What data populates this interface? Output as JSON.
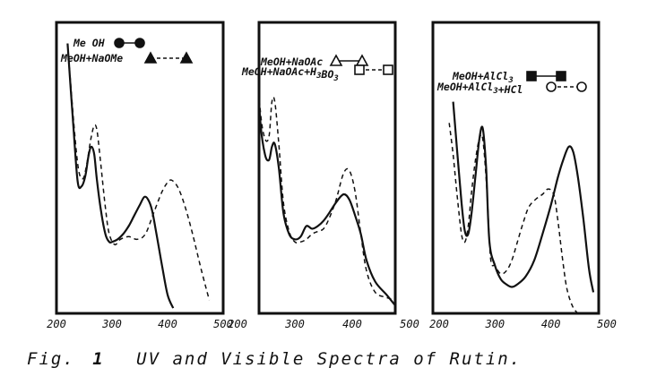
{
  "caption": {
    "fig": "Fig.",
    "number": "1",
    "text": "UV and Visible Spectra of Rutin."
  },
  "colors": {
    "ink": "#111111",
    "background": "#ffffff"
  },
  "chart_data": [
    {
      "type": "line",
      "title": "",
      "xlabel": "",
      "ylabel": "",
      "xlim": [
        200,
        500
      ],
      "ylim": [
        0,
        1.1
      ],
      "xticks": [
        "200",
        "300",
        "400",
        "500"
      ],
      "grid": false,
      "legend_position": "top",
      "series": [
        {
          "name": "Me OH",
          "marker": "filled-circle",
          "linestyle": "solid",
          "x": [
            220,
            230,
            238,
            245,
            252,
            258,
            263,
            268,
            273,
            280,
            288,
            295,
            300,
            310,
            320,
            330,
            340,
            350,
            358,
            365,
            372,
            380,
            390,
            400,
            410
          ],
          "y": [
            1.02,
            0.72,
            0.5,
            0.48,
            0.52,
            0.6,
            0.63,
            0.6,
            0.5,
            0.39,
            0.3,
            0.27,
            0.27,
            0.28,
            0.3,
            0.33,
            0.37,
            0.41,
            0.44,
            0.43,
            0.39,
            0.3,
            0.18,
            0.07,
            0.02
          ]
        },
        {
          "name": "MeOH+NaOMe",
          "marker": "filled-triangle",
          "linestyle": "dashed",
          "x": [
            220,
            232,
            240,
            248,
            255,
            262,
            268,
            273,
            280,
            288,
            295,
            305,
            315,
            330,
            345,
            360,
            375,
            390,
            402,
            410,
            420,
            432,
            445,
            460,
            475
          ],
          "y": [
            1.02,
            0.7,
            0.54,
            0.51,
            0.57,
            0.66,
            0.71,
            0.69,
            0.56,
            0.4,
            0.3,
            0.26,
            0.28,
            0.29,
            0.28,
            0.3,
            0.38,
            0.46,
            0.5,
            0.5,
            0.47,
            0.4,
            0.3,
            0.17,
            0.05
          ]
        }
      ]
    },
    {
      "type": "line",
      "title": "",
      "xlabel": "",
      "ylabel": "",
      "xlim": [
        200,
        500
      ],
      "ylim": [
        0,
        1.1
      ],
      "xticks": [
        "200",
        "300",
        "400",
        "500"
      ],
      "grid": false,
      "legend_position": "top",
      "series": [
        {
          "name": "MeOH+NaOAc",
          "marker": "open-triangle",
          "linestyle": "solid",
          "x": [
            232,
            240,
            248,
            255,
            260,
            265,
            272,
            280,
            290,
            300,
            310,
            320,
            330,
            340,
            350,
            360,
            372,
            385,
            395,
            405,
            415,
            425,
            440,
            460,
            475
          ],
          "y": [
            1.02,
            0.72,
            0.6,
            0.58,
            0.63,
            0.64,
            0.55,
            0.38,
            0.3,
            0.28,
            0.29,
            0.33,
            0.32,
            0.33,
            0.35,
            0.38,
            0.42,
            0.45,
            0.43,
            0.37,
            0.3,
            0.2,
            0.12,
            0.07,
            0.03
          ]
        },
        {
          "name": "MeOH+NaOAc+H3BO3",
          "marker": "open-square",
          "linestyle": "dashed",
          "x": [
            232,
            240,
            248,
            255,
            260,
            265,
            272,
            280,
            290,
            300,
            310,
            320,
            330,
            340,
            350,
            360,
            372,
            385,
            395,
            405,
            415,
            425,
            440,
            460,
            475
          ],
          "y": [
            1.02,
            0.76,
            0.66,
            0.67,
            0.8,
            0.8,
            0.64,
            0.42,
            0.31,
            0.27,
            0.27,
            0.28,
            0.3,
            0.31,
            0.32,
            0.36,
            0.43,
            0.53,
            0.54,
            0.46,
            0.3,
            0.16,
            0.08,
            0.06,
            0.05
          ]
        }
      ]
    },
    {
      "type": "line",
      "title": "",
      "xlabel": "",
      "ylabel": "",
      "xlim": [
        200,
        500
      ],
      "ylim": [
        0,
        1.1
      ],
      "xticks": [
        "200",
        "300",
        "400",
        "500"
      ],
      "grid": false,
      "legend_position": "top",
      "series": [
        {
          "name": "MeOH+AlCl3",
          "marker": "filled-square",
          "linestyle": "solid",
          "x": [
            225,
            232,
            240,
            246,
            252,
            258,
            265,
            272,
            278,
            284,
            290,
            300,
            310,
            320,
            330,
            340,
            355,
            370,
            385,
            400,
            412,
            422,
            432,
            440,
            448,
            458,
            468,
            476
          ],
          "y": [
            0.8,
            0.62,
            0.42,
            0.31,
            0.3,
            0.38,
            0.52,
            0.66,
            0.7,
            0.55,
            0.27,
            0.18,
            0.13,
            0.11,
            0.1,
            0.11,
            0.14,
            0.2,
            0.3,
            0.41,
            0.51,
            0.58,
            0.63,
            0.61,
            0.52,
            0.36,
            0.17,
            0.08
          ]
        },
        {
          "name": "MeOH+AlCl3+HCl",
          "marker": "open-circle",
          "linestyle": "dashed",
          "x": [
            218,
            225,
            232,
            240,
            246,
            252,
            258,
            265,
            272,
            278,
            285,
            292,
            300,
            310,
            320,
            330,
            340,
            350,
            360,
            372,
            385,
            395,
            405,
            412,
            420,
            428,
            438,
            448
          ],
          "y": [
            0.72,
            0.6,
            0.45,
            0.3,
            0.27,
            0.33,
            0.46,
            0.58,
            0.66,
            0.66,
            0.48,
            0.21,
            0.18,
            0.15,
            0.16,
            0.2,
            0.27,
            0.34,
            0.4,
            0.43,
            0.45,
            0.47,
            0.45,
            0.36,
            0.22,
            0.1,
            0.03,
            0.0
          ]
        }
      ]
    }
  ]
}
